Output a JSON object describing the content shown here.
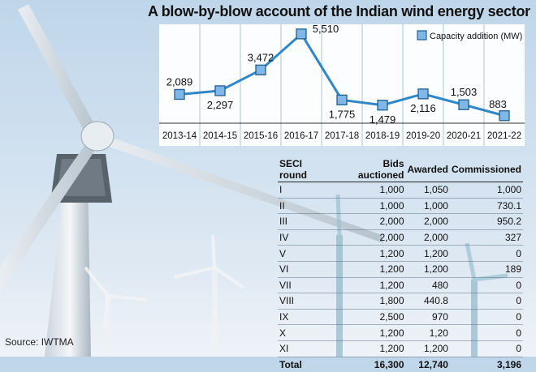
{
  "title": "A blow-by-blow account of the Indian wind energy sector",
  "source": "Source: IWTMA",
  "colors": {
    "line": "#2f86c8",
    "marker_fill": "#7fb8e6",
    "marker_stroke": "#1f5f93"
  },
  "chart_data": [
    {
      "type": "line",
      "categories": [
        "2013-14",
        "2014-15",
        "2015-16",
        "2016-17",
        "2017-18",
        "2018-19",
        "2019-20",
        "2020-21",
        "2021-22"
      ],
      "series": [
        {
          "name": "Capacity addition (MW)",
          "values": [
            2089,
            2297,
            3472,
            5510,
            1775,
            1479,
            2116,
            1503,
            883
          ],
          "labels": [
            "2,089",
            "2,297",
            "3,472",
            "5,510",
            "1,775",
            "1,479",
            "2,116",
            "1,503",
            "883"
          ]
        }
      ],
      "legend": "top-right",
      "ylim": [
        0,
        6000
      ],
      "grid": "vertical"
    },
    {
      "type": "table",
      "columns": [
        "SECI round",
        "Bids auctioned",
        "Awarded",
        "Commissioned"
      ],
      "rows": [
        [
          "I",
          "1,000",
          "1,050",
          "1,000"
        ],
        [
          "II",
          "1,000",
          "1,000",
          "730.1"
        ],
        [
          "III",
          "2,000",
          "2,000",
          "950.2"
        ],
        [
          "IV",
          "2,000",
          "2,000",
          "327"
        ],
        [
          "V",
          "1,200",
          "1,200",
          "0"
        ],
        [
          "VI",
          "1,200",
          "1,200",
          "189"
        ],
        [
          "VII",
          "1,200",
          "480",
          "0"
        ],
        [
          "VIII",
          "1,800",
          "440.8",
          "0"
        ],
        [
          "IX",
          "2,500",
          "970",
          "0"
        ],
        [
          "X",
          "1,200",
          "1,20",
          "0"
        ],
        [
          "XI",
          "1,200",
          "1,200",
          "0"
        ]
      ],
      "total": [
        "Total",
        "16,300",
        "12,740",
        "3,196"
      ]
    }
  ]
}
